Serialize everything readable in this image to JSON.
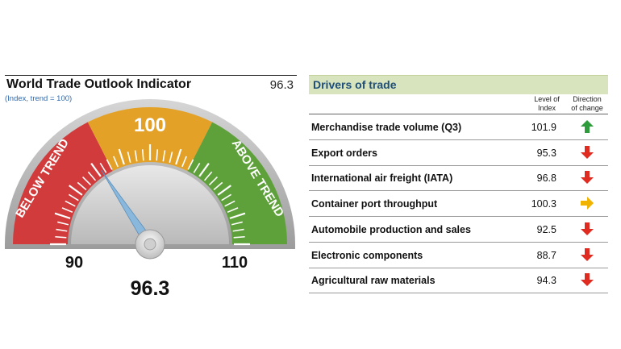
{
  "indicator": {
    "title": "World Trade Outlook Indicator",
    "value_text": "96.3",
    "subtitle": "(Index, trend = 100)"
  },
  "chart_data": {
    "type": "gauge",
    "value": 96.3,
    "range": [
      90,
      110
    ],
    "baseline": 100,
    "zones": [
      {
        "label": "BELOW TREND",
        "from": 90,
        "to": 97,
        "color": "#d13b3b"
      },
      {
        "label": "100",
        "from": 97,
        "to": 103,
        "color": "#e3a227"
      },
      {
        "label": "ABOVE TREND",
        "from": 103,
        "to": 110,
        "color": "#5ea13a"
      }
    ],
    "tick_labels": {
      "min": "90",
      "max": "110"
    },
    "value_label": "96.3"
  },
  "drivers": {
    "title": "Drivers of trade",
    "col_level": [
      "Level of",
      "Index"
    ],
    "col_direction": [
      "Direction",
      "of change"
    ],
    "rows": [
      {
        "name": "Merchandise trade volume (Q3)",
        "value": "101.9",
        "direction": "up"
      },
      {
        "name": "Export orders",
        "value": "95.3",
        "direction": "down"
      },
      {
        "name": "International air freight (IATA)",
        "value": "96.8",
        "direction": "down"
      },
      {
        "name": "Container port throughput",
        "value": "100.3",
        "direction": "flat"
      },
      {
        "name": "Automobile production and sales",
        "value": "92.5",
        "direction": "down"
      },
      {
        "name": "Electronic components",
        "value": "88.7",
        "direction": "down"
      },
      {
        "name": "Agricultural raw materials",
        "value": "94.3",
        "direction": "down"
      }
    ]
  },
  "icons": {
    "up": "arrow-up-icon",
    "down": "arrow-down-icon",
    "flat": "arrow-right-icon"
  },
  "colors": {
    "up": "#2e9b3c",
    "down": "#e02b20",
    "flat": "#f0b400"
  }
}
